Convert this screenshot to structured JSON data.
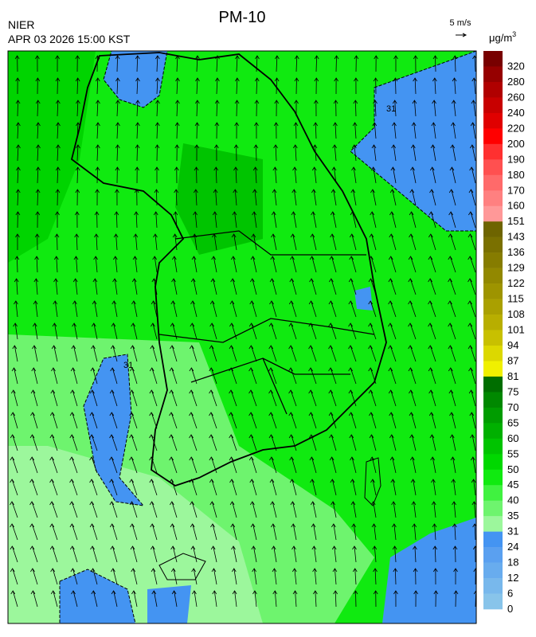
{
  "header": {
    "title": "PM-10",
    "agency": "NIER",
    "timestamp": "APR 03 2026 15:00 KST",
    "wind_scale": "5 m/s",
    "unit": {
      "base": "μg/m",
      "sup": "3"
    }
  },
  "map": {
    "contour_label": "31"
  },
  "legend": {
    "labels": [
      "320",
      "280",
      "260",
      "240",
      "220",
      "200",
      "190",
      "180",
      "170",
      "160",
      "151",
      "143",
      "136",
      "129",
      "122",
      "115",
      "108",
      "101",
      "94",
      "87",
      "81",
      "75",
      "70",
      "65",
      "60",
      "55",
      "50",
      "45",
      "40",
      "35",
      "31",
      "24",
      "18",
      "12",
      "6",
      "0"
    ],
    "colors": [
      "#780000",
      "#960000",
      "#b00000",
      "#c80000",
      "#e00000",
      "#ff0000",
      "#ff3030",
      "#ff5050",
      "#ff6a6a",
      "#ff8080",
      "#ff9898",
      "#6e6400",
      "#7a7000",
      "#867c00",
      "#928800",
      "#9e9400",
      "#aaa000",
      "#b8ae00",
      "#c8c000",
      "#dcd800",
      "#f0f000",
      "#006e00",
      "#008800",
      "#009c00",
      "#00b000",
      "#00c400",
      "#00d800",
      "#10ea10",
      "#40f240",
      "#6ef46e",
      "#9cf79c",
      "#4494f2",
      "#5aa0f0",
      "#68acee",
      "#78b8ec",
      "#88c4ea"
    ]
  }
}
